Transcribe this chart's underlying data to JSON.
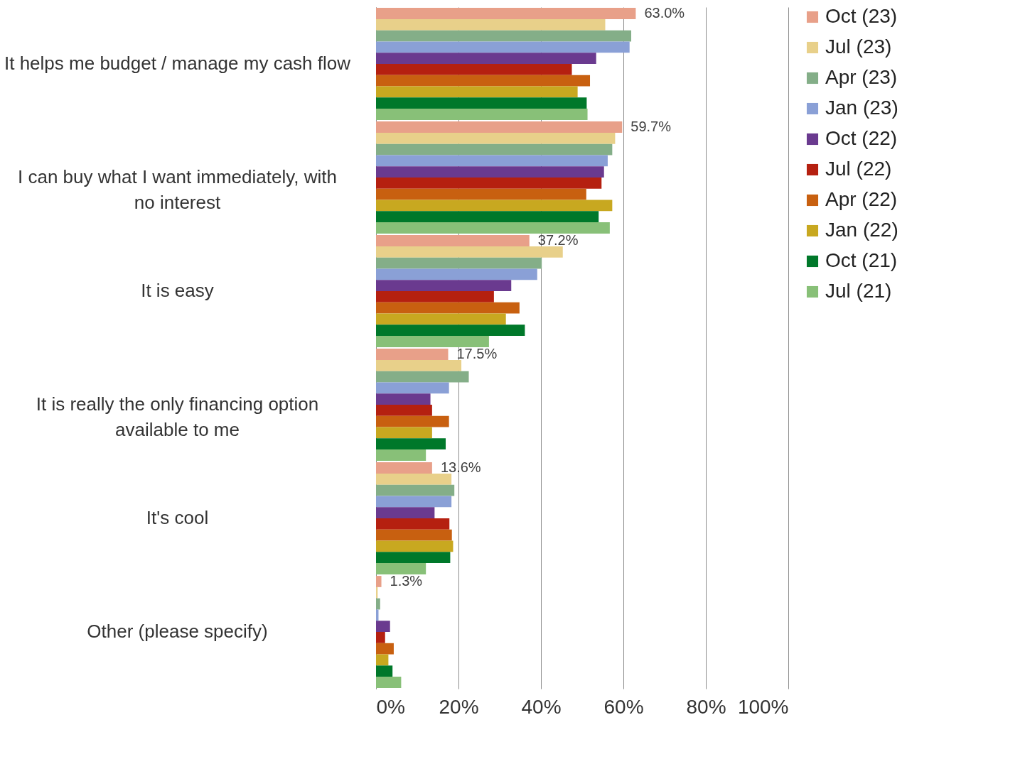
{
  "chart_data": {
    "type": "bar",
    "orientation": "horizontal",
    "categories": [
      "It helps me budget / manage my cash flow",
      "I can buy what I want immediately, with no interest",
      "It is easy",
      "It is really the only financing option available to me",
      "It's cool",
      "Other (please specify)"
    ],
    "series": [
      {
        "name": "Oct (23)",
        "color": "#e8a089",
        "values": [
          63.0,
          59.7,
          37.2,
          17.5,
          13.6,
          1.3
        ],
        "value_labels": [
          "63.0%",
          "59.7%",
          "37.2%",
          "17.5%",
          "13.6%",
          "1.3%"
        ]
      },
      {
        "name": "Jul (23)",
        "color": "#e8d08a",
        "values": [
          55.6,
          58.0,
          45.3,
          20.7,
          18.3,
          0.4
        ]
      },
      {
        "name": "Apr (23)",
        "color": "#84ae88",
        "values": [
          61.9,
          57.3,
          40.2,
          22.5,
          19.0,
          1.0
        ]
      },
      {
        "name": "Jan (23)",
        "color": "#8aa0d6",
        "values": [
          61.5,
          56.2,
          39.1,
          17.7,
          18.3,
          0.6
        ]
      },
      {
        "name": "Oct (22)",
        "color": "#6a3a8f",
        "values": [
          53.4,
          55.3,
          32.8,
          13.2,
          14.2,
          3.4
        ]
      },
      {
        "name": "Jul (22)",
        "color": "#b52010",
        "values": [
          47.5,
          54.7,
          28.6,
          13.6,
          17.8,
          2.2
        ]
      },
      {
        "name": "Apr (22)",
        "color": "#c86010",
        "values": [
          51.9,
          51.0,
          34.8,
          17.7,
          18.4,
          4.3
        ]
      },
      {
        "name": "Jan (22)",
        "color": "#c8a820",
        "values": [
          48.9,
          57.3,
          31.5,
          13.6,
          18.7,
          3.0
        ]
      },
      {
        "name": "Oct (21)",
        "color": "#00782a",
        "values": [
          51.1,
          54.0,
          36.1,
          16.9,
          18.0,
          4.0
        ]
      },
      {
        "name": "Jul (21)",
        "color": "#88c078",
        "values": [
          51.3,
          56.7,
          27.4,
          12.1,
          12.1,
          6.1
        ]
      }
    ],
    "xlim": [
      0,
      100
    ],
    "xticks": [
      {
        "value": 0,
        "label": "0%"
      },
      {
        "value": 20,
        "label": "20%"
      },
      {
        "value": 40,
        "label": "40%"
      },
      {
        "value": 60,
        "label": "60%"
      },
      {
        "value": 80,
        "label": "80%"
      },
      {
        "value": 100,
        "label": "100%"
      }
    ],
    "grid": "x",
    "legend": "right"
  }
}
